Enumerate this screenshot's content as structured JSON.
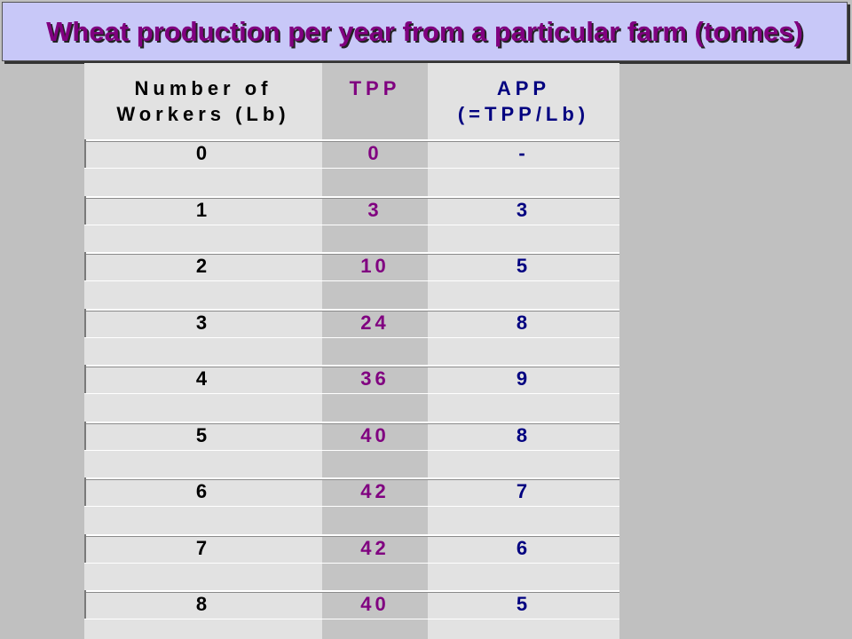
{
  "title": "Wheat production per year from a particular farm (tonnes)",
  "table": {
    "headers": {
      "workers": "Number of\nWorkers (Lb)",
      "tpp": "TPP",
      "app": "APP\n(=TPP/Lb)"
    },
    "rows": [
      {
        "workers": "0",
        "tpp": "0",
        "app": "-"
      },
      {
        "workers": "1",
        "tpp": "3",
        "app": "3"
      },
      {
        "workers": "2",
        "tpp": "10",
        "app": "5"
      },
      {
        "workers": "3",
        "tpp": "24",
        "app": "8"
      },
      {
        "workers": "4",
        "tpp": "36",
        "app": "9"
      },
      {
        "workers": "5",
        "tpp": "40",
        "app": "8"
      },
      {
        "workers": "6",
        "tpp": "42",
        "app": "7"
      },
      {
        "workers": "7",
        "tpp": "42",
        "app": "6"
      },
      {
        "workers": "8",
        "tpp": "40",
        "app": "5"
      }
    ]
  },
  "colors": {
    "title": "#800080",
    "title_box": "#c8c8f8",
    "tpp_text": "#800080",
    "app_text": "#000080",
    "background": "#c0c0c0"
  }
}
